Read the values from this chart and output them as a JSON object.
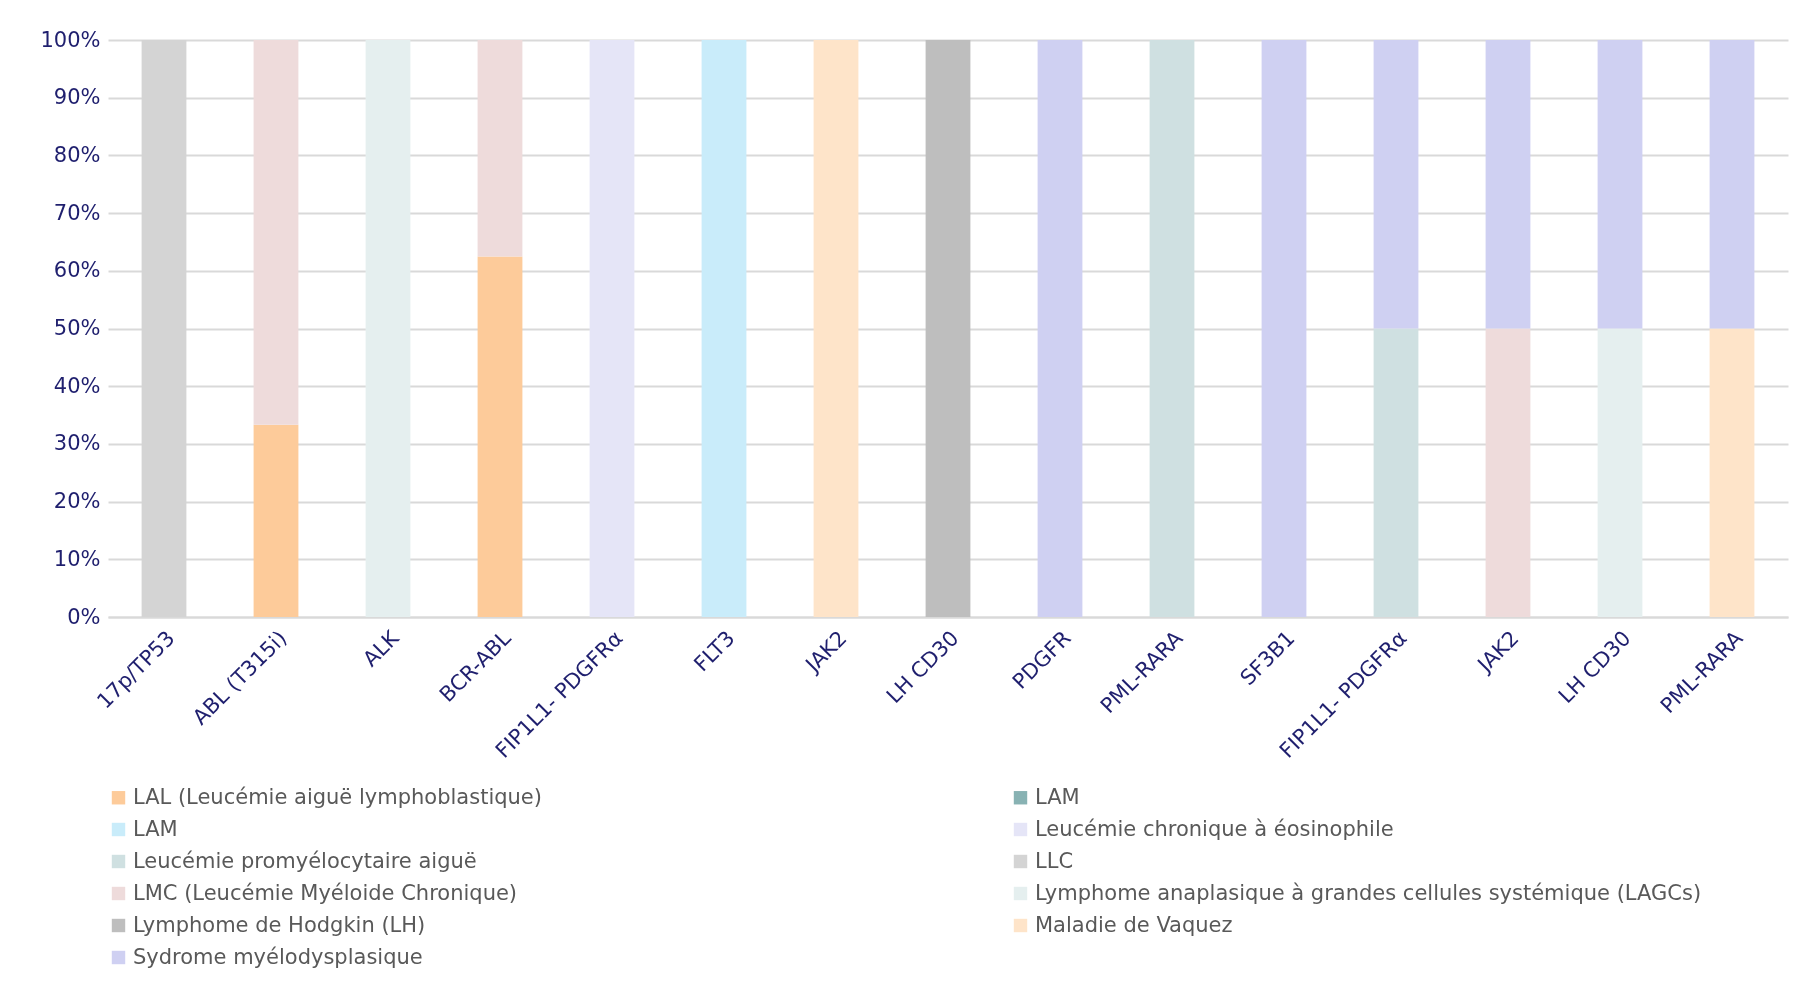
{
  "chart_data": {
    "type": "bar",
    "stacked": true,
    "grid": "y",
    "legend": "bottom",
    "categories": [
      "17p/TP53",
      "ABL (T315i)",
      "ALK",
      "BCR-ABL",
      "FIP1L1- PDGFRα",
      "FLT3",
      "JAK2",
      "LH CD30",
      "PDGFR",
      "PML-RARA",
      "SF3B1",
      "FIP1L1- PDGFRα",
      "JAK2",
      "LH CD30",
      "PML-RARA"
    ],
    "ylim": [
      0,
      100
    ],
    "yticks": [
      {
        "value": 0,
        "label": "0%"
      },
      {
        "value": 10,
        "label": "10%"
      },
      {
        "value": 20,
        "label": "20%"
      },
      {
        "value": 30,
        "label": "30%"
      },
      {
        "value": 40,
        "label": "40%"
      },
      {
        "value": 50,
        "label": "50%"
      },
      {
        "value": 60,
        "label": "60%"
      },
      {
        "value": 70,
        "label": "70%"
      },
      {
        "value": 80,
        "label": "80%"
      },
      {
        "value": 90,
        "label": "90%"
      },
      {
        "value": 100,
        "label": "100%"
      }
    ],
    "series": [
      {
        "name": "LAL (Leucémie aiguë lymphoblastique)",
        "color": "#fdcb9a",
        "values": [
          null,
          33.3,
          null,
          62.5,
          null,
          null,
          null,
          null,
          null,
          null,
          null,
          null,
          null,
          null,
          null
        ]
      },
      {
        "name": "LAM",
        "color": "#88b2b3",
        "values": [
          null,
          null,
          null,
          null,
          null,
          null,
          null,
          null,
          null,
          null,
          null,
          null,
          null,
          null,
          null
        ]
      },
      {
        "name": "LAM",
        "color": "#c9ecfa",
        "values": [
          null,
          null,
          null,
          null,
          null,
          100,
          null,
          null,
          null,
          null,
          null,
          null,
          null,
          null,
          null
        ]
      },
      {
        "name": "Leucémie chronique à éosinophile",
        "color": "#e5e5f7",
        "values": [
          null,
          null,
          null,
          null,
          100,
          null,
          null,
          null,
          null,
          null,
          null,
          null,
          null,
          null,
          null
        ]
      },
      {
        "name": "Leucémie promyélocytaire aiguë",
        "color": "#cfe0e1",
        "values": [
          null,
          null,
          null,
          null,
          null,
          null,
          null,
          null,
          null,
          100,
          null,
          50,
          null,
          null,
          null
        ]
      },
      {
        "name": "LLC",
        "color": "#d4d4d4",
        "values": [
          100,
          null,
          null,
          null,
          null,
          null,
          null,
          null,
          null,
          null,
          null,
          null,
          null,
          null,
          null
        ]
      },
      {
        "name": "LMC (Leucémie Myéloide Chronique)",
        "color": "#eedbdb",
        "values": [
          null,
          66.7,
          null,
          37.5,
          null,
          null,
          null,
          null,
          null,
          null,
          null,
          null,
          50,
          null,
          null
        ]
      },
      {
        "name": "Lymphome anaplasique à grandes cellules systémique (LAGCs)",
        "color": "#e5efef",
        "values": [
          null,
          null,
          100,
          null,
          null,
          null,
          null,
          null,
          null,
          null,
          null,
          null,
          null,
          50,
          null
        ]
      },
      {
        "name": "Lymphome de Hodgkin (LH)",
        "color": "#bebebe",
        "values": [
          null,
          null,
          null,
          null,
          null,
          null,
          null,
          100,
          null,
          null,
          null,
          null,
          null,
          null,
          null
        ]
      },
      {
        "name": "Maladie de Vaquez",
        "color": "#fee4c9",
        "values": [
          null,
          null,
          null,
          null,
          null,
          null,
          100,
          null,
          null,
          null,
          null,
          null,
          null,
          null,
          50
        ]
      },
      {
        "name": "Sydrome myélodysplasique",
        "color": "#cfd0f2",
        "values": [
          null,
          null,
          null,
          null,
          null,
          null,
          null,
          null,
          100,
          null,
          100,
          50,
          50,
          50,
          50
        ]
      }
    ]
  }
}
